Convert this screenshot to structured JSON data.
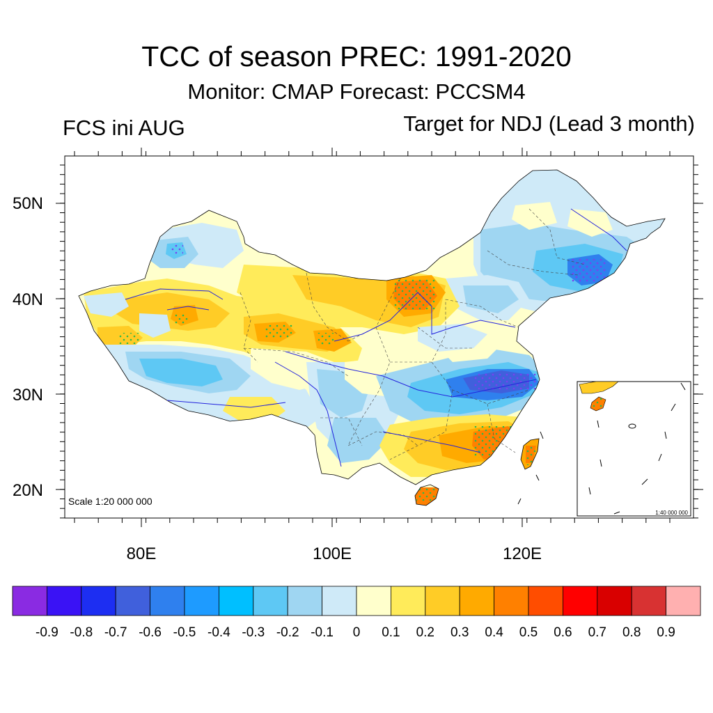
{
  "header": {
    "title": "TCC of season PREC: 1991-2020",
    "subtitle": "Monitor: CMAP   Forecast: PCCSM4",
    "left_string": "FCS ini AUG",
    "right_string": "Target for NDJ (Lead 3 month)"
  },
  "map": {
    "lat_ticks": [
      "50N",
      "40N",
      "30N",
      "20N"
    ],
    "lon_ticks": [
      "80E",
      "100E",
      "120E"
    ],
    "scale_text": "Scale 1:20 000 000",
    "inset_scale_text": "1:40 000 000"
  },
  "colorbar": {
    "colors": [
      "#8a2be2",
      "#3a12f5",
      "#1d2ef2",
      "#4060dc",
      "#2f80ee",
      "#1e9bff",
      "#00bfff",
      "#5ec8f4",
      "#9fd6f2",
      "#cfeaf8",
      "#ffffcc",
      "#ffeb5a",
      "#ffcc26",
      "#ffaa00",
      "#ff8000",
      "#ff4d00",
      "#ff0000",
      "#d90000",
      "#d83232",
      "#ffb0b0"
    ],
    "labels": [
      "-0.9",
      "-0.8",
      "-0.7",
      "-0.6",
      "-0.5",
      "-0.4",
      "-0.3",
      "-0.2",
      "-0.1",
      "0",
      "0.1",
      "0.2",
      "0.3",
      "0.4",
      "0.5",
      "0.6",
      "0.7",
      "0.8",
      "0.9"
    ]
  }
}
